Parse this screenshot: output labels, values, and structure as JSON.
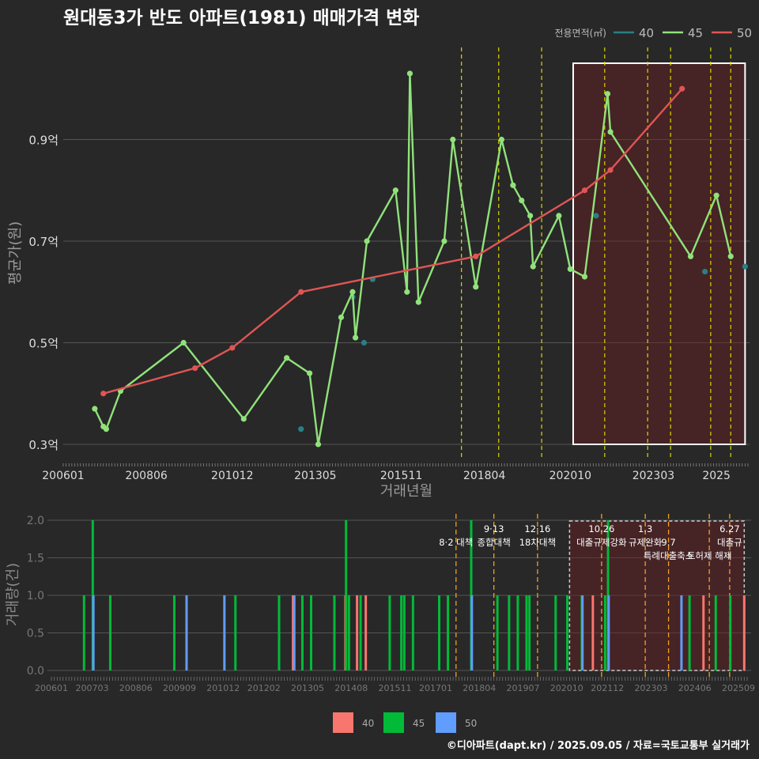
{
  "title": "원대동3가 반도 아파트(1981) 매매가격 변화",
  "footer": "©디아파트(dapt.kr) / 2025.09.05 / 자료=국토교통부 실거래가",
  "colors": {
    "s40": "#2a7f85",
    "s45": "#90e27a",
    "s50": "#e05555",
    "b40": "#f8766d",
    "b45": "#00ba38",
    "b50": "#619cff"
  },
  "chart_data": [
    {
      "type": "line",
      "xlabel": "거래년월",
      "ylabel": "평균가(원)",
      "legend_title": "전용면적(㎡)",
      "legend_position": "top-right",
      "x_ticks": [
        "200601",
        "200806",
        "201012",
        "201305",
        "201511",
        "201804",
        "202010",
        "202303",
        "2025"
      ],
      "y_ticks": [
        {
          "value": 0.3,
          "label": "0.3억"
        },
        {
          "value": 0.5,
          "label": "0.5억"
        },
        {
          "value": 0.7,
          "label": "0.7억"
        },
        {
          "value": 0.9,
          "label": "0.9억"
        }
      ],
      "ylim": [
        0.28,
        1.06
      ],
      "highlight_range": [
        "2020-11",
        "2025-11"
      ],
      "policy_lines": [
        "2017-08",
        "2018-09",
        "2019-12",
        "2021-10",
        "2023-01",
        "2023-09",
        "2024-11",
        "2025-06"
      ],
      "series": [
        {
          "name": "40",
          "points": [
            [
              "2012-12",
              0.33
            ],
            [
              "2014-06",
              0.59
            ],
            [
              "2014-10",
              0.5
            ],
            [
              "2015-01",
              0.625
            ],
            [
              "2021-07",
              0.75
            ],
            [
              "2024-09",
              0.64
            ],
            [
              "2025-11",
              0.65
            ]
          ]
        },
        {
          "name": "45",
          "points": [
            [
              "2006-12",
              0.37
            ],
            [
              "2007-03",
              0.335
            ],
            [
              "2007-04",
              0.33
            ],
            [
              "2007-09",
              0.405
            ],
            [
              "2009-07",
              0.5
            ],
            [
              "2011-04",
              0.35
            ],
            [
              "2012-07",
              0.47
            ],
            [
              "2013-03",
              0.44
            ],
            [
              "2013-06",
              0.3
            ],
            [
              "2014-02",
              0.55
            ],
            [
              "2014-06",
              0.6
            ],
            [
              "2014-07",
              0.51
            ],
            [
              "2014-11",
              0.7
            ],
            [
              "2015-09",
              0.8
            ],
            [
              "2016-01",
              0.6
            ],
            [
              "2016-02",
              1.03
            ],
            [
              "2016-05",
              0.58
            ],
            [
              "2017-02",
              0.7
            ],
            [
              "2017-05",
              0.9
            ],
            [
              "2018-01",
              0.61
            ],
            [
              "2018-10",
              0.9
            ],
            [
              "2019-02",
              0.81
            ],
            [
              "2019-05",
              0.78
            ],
            [
              "2019-08",
              0.75
            ],
            [
              "2019-09",
              0.65
            ],
            [
              "2020-06",
              0.75
            ],
            [
              "2020-10",
              0.645
            ],
            [
              "2021-03",
              0.63
            ],
            [
              "2021-11",
              0.99
            ],
            [
              "2021-12",
              0.915
            ],
            [
              "2024-04",
              0.67
            ],
            [
              "2025-01",
              0.79
            ],
            [
              "2025-06",
              0.67
            ]
          ]
        },
        {
          "name": "50",
          "points": [
            [
              "2007-03",
              0.4
            ],
            [
              "2009-11",
              0.45
            ],
            [
              "2010-12",
              0.49
            ],
            [
              "2012-12",
              0.6
            ],
            [
              "2018-01",
              0.67
            ],
            [
              "2021-03",
              0.8
            ],
            [
              "2021-12",
              0.84
            ],
            [
              "2024-01",
              1.0
            ]
          ]
        }
      ]
    },
    {
      "type": "bar",
      "xlabel": "",
      "ylabel": "거래량(건)",
      "x_ticks": [
        "200601",
        "200703",
        "200806",
        "200909",
        "201012",
        "201202",
        "201305",
        "201408",
        "201511",
        "201701",
        "201804",
        "201907",
        "202010",
        "202112",
        "202303",
        "202406",
        "202509"
      ],
      "y_ticks": [
        "0.0",
        "0.5",
        "1.0",
        "1.5",
        "2.0"
      ],
      "ylim": [
        0,
        2.1
      ],
      "highlight_range": [
        "2020-11",
        "2025-11"
      ],
      "annotations": [
        {
          "date": "2017-08",
          "label": "8·2 대책",
          "row": 1
        },
        {
          "date": "2018-09",
          "label": "9·13",
          "row": 0
        },
        {
          "date": "2018-09",
          "label": "종합대책",
          "row": 1
        },
        {
          "date": "2019-12",
          "label": "12·16",
          "row": 0
        },
        {
          "date": "2019-12",
          "label": "18차대책",
          "row": 1
        },
        {
          "date": "2021-10",
          "label": "10.26",
          "row": 0
        },
        {
          "date": "2021-10",
          "label": "대출규제강화",
          "row": 1
        },
        {
          "date": "2023-01",
          "label": "1.3",
          "row": 0
        },
        {
          "date": "2023-01",
          "label": "규제완화",
          "row": 1
        },
        {
          "date": "2023-09",
          "label": "9.7",
          "row": 1
        },
        {
          "date": "2023-09",
          "label": "특례대출축소",
          "row": 2
        },
        {
          "date": "2024-11",
          "label": "토허제 해제",
          "row": 2
        },
        {
          "date": "2025-06",
          "label": "6.27",
          "row": 0
        },
        {
          "date": "2025-06",
          "label": "대출규",
          "row": 1
        }
      ],
      "series": [
        {
          "name": "40",
          "bars": [
            [
              "2012-12",
              1
            ],
            [
              "2014-06",
              1
            ],
            [
              "2014-10",
              1
            ],
            [
              "2015-01",
              1
            ],
            [
              "2021-07",
              1
            ],
            [
              "2024-09",
              1
            ],
            [
              "2025-11",
              1
            ]
          ]
        },
        {
          "name": "45",
          "bars": [
            [
              "2006-12",
              1
            ],
            [
              "2007-03",
              2
            ],
            [
              "2007-09",
              1
            ],
            [
              "2009-07",
              1
            ],
            [
              "2011-04",
              1
            ],
            [
              "2012-07",
              1
            ],
            [
              "2013-03",
              1
            ],
            [
              "2013-06",
              1
            ],
            [
              "2014-02",
              1
            ],
            [
              "2014-06",
              2
            ],
            [
              "2014-07",
              1
            ],
            [
              "2014-11",
              1
            ],
            [
              "2015-09",
              1
            ],
            [
              "2016-01",
              1
            ],
            [
              "2016-02",
              1
            ],
            [
              "2016-05",
              1
            ],
            [
              "2017-02",
              1
            ],
            [
              "2017-05",
              1
            ],
            [
              "2018-01",
              2
            ],
            [
              "2018-10",
              1
            ],
            [
              "2019-02",
              1
            ],
            [
              "2019-05",
              1
            ],
            [
              "2019-08",
              1
            ],
            [
              "2019-09",
              1
            ],
            [
              "2020-06",
              1
            ],
            [
              "2020-10",
              1
            ],
            [
              "2021-03",
              1
            ],
            [
              "2021-11",
              1
            ],
            [
              "2021-12",
              2
            ],
            [
              "2024-04",
              1
            ],
            [
              "2025-01",
              1
            ],
            [
              "2025-06",
              1
            ]
          ]
        },
        {
          "name": "50",
          "bars": [
            [
              "2007-03",
              1
            ],
            [
              "2009-11",
              1
            ],
            [
              "2010-12",
              1
            ],
            [
              "2012-12",
              1
            ],
            [
              "2018-01",
              1
            ],
            [
              "2021-03",
              1
            ],
            [
              "2021-12",
              1
            ],
            [
              "2024-01",
              1
            ]
          ]
        }
      ]
    }
  ]
}
